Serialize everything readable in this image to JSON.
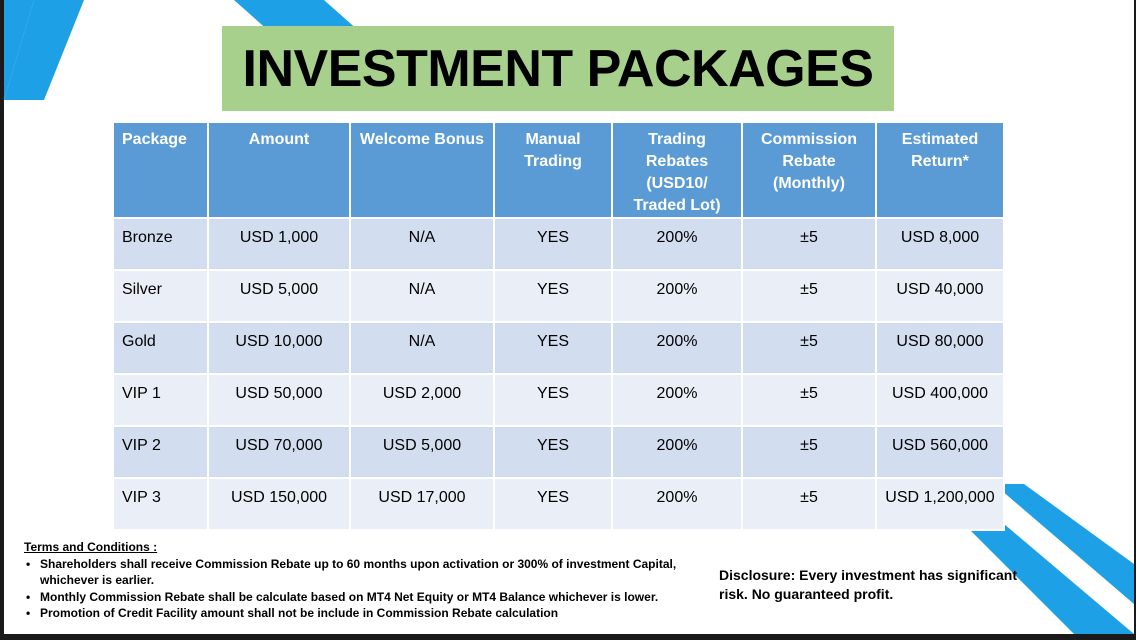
{
  "title": "INVESTMENT PACKAGES",
  "colors": {
    "title_bg": "#a8d08d",
    "header_bg": "#5b9bd5",
    "row_dark": "#d2deef",
    "row_light": "#eaeff7",
    "accent_stripe": "#1ea0e6"
  },
  "table": {
    "headers": [
      "Package",
      "Amount",
      "Welcome Bonus",
      "Manual\nTrading",
      "Trading\nRebates\n(USD10/\nTraded Lot)",
      "Commission\nRebate\n(Monthly)",
      "Estimated\nReturn*"
    ],
    "rows": [
      [
        "Bronze",
        "USD 1,000",
        "N/A",
        "YES",
        "200%",
        "±5",
        "USD 8,000"
      ],
      [
        "Silver",
        "USD 5,000",
        "N/A",
        "YES",
        "200%",
        "±5",
        "USD 40,000"
      ],
      [
        "Gold",
        "USD 10,000",
        "N/A",
        "YES",
        "200%",
        "±5",
        "USD 80,000"
      ],
      [
        "VIP 1",
        "USD 50,000",
        "USD 2,000",
        "YES",
        "200%",
        "±5",
        "USD 400,000"
      ],
      [
        "VIP 2",
        "USD 70,000",
        "USD 5,000",
        "YES",
        "200%",
        "±5",
        "USD 560,000"
      ],
      [
        "VIP 3",
        "USD 150,000",
        "USD 17,000",
        "YES",
        "200%",
        "±5",
        "USD 1,200,000"
      ]
    ]
  },
  "terms": {
    "heading": "Terms and Conditions :",
    "items": [
      "Shareholders shall receive Commission Rebate up to 60 months upon activation or 300% of investment Capital, whichever is earlier.",
      "Monthly Commission Rebate shall be calculate based on  MT4 Net Equity or  MT4 Balance whichever is lower.",
      "Promotion  of Credit Facility amount shall not be include in Commission Rebate calculation"
    ]
  },
  "disclosure": "Disclosure: Every investment has significant risk. No guaranteed profit."
}
